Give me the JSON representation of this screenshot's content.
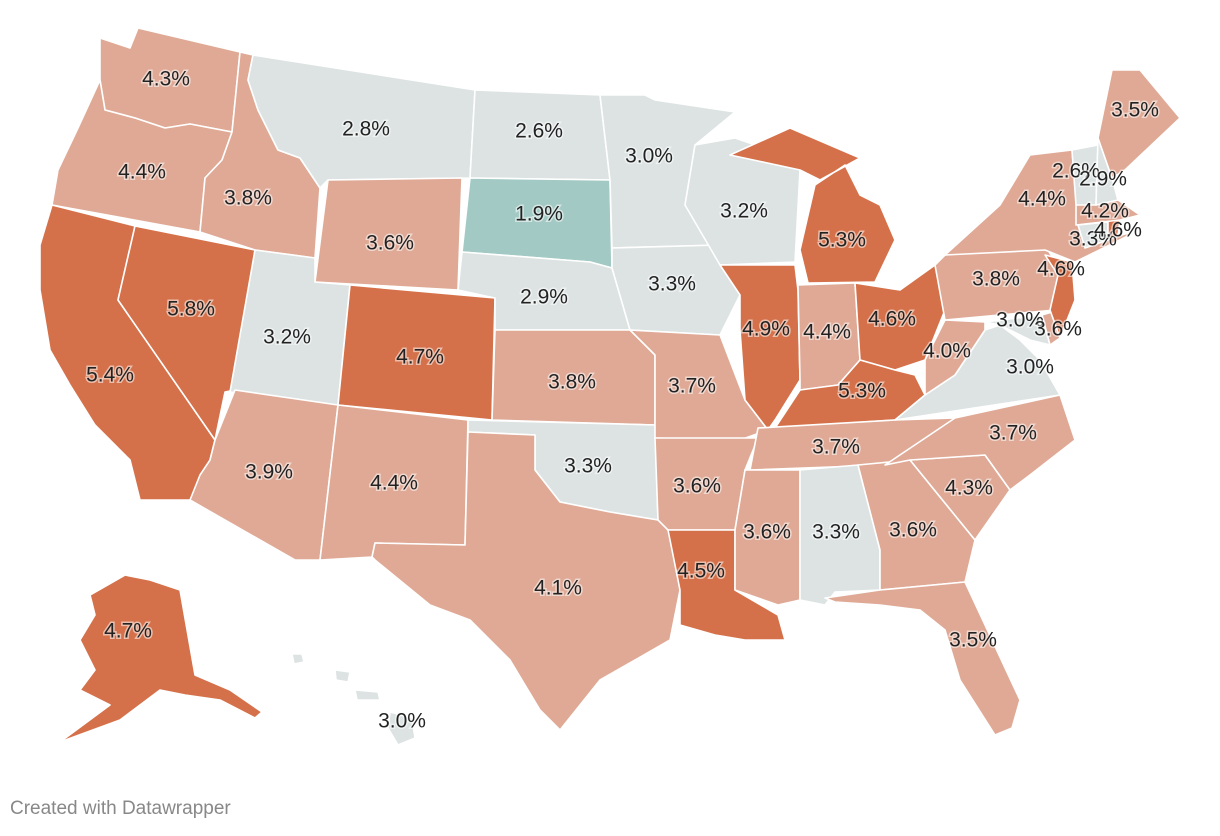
{
  "map": {
    "colors": {
      "high": "#d5714a",
      "mid": "#dfa995",
      "low": "#dce3e2",
      "lowest": "#a2c9c3"
    },
    "states": [
      {
        "code": "WA",
        "label": "4.3%",
        "cls": "mid"
      },
      {
        "code": "OR",
        "label": "4.4%",
        "cls": "mid"
      },
      {
        "code": "CA",
        "label": "5.4%",
        "cls": "high"
      },
      {
        "code": "NV",
        "label": "5.8%",
        "cls": "high"
      },
      {
        "code": "ID",
        "label": "3.8%",
        "cls": "mid"
      },
      {
        "code": "MT",
        "label": "2.8%",
        "cls": "low"
      },
      {
        "code": "WY",
        "label": "3.6%",
        "cls": "mid"
      },
      {
        "code": "UT",
        "label": "3.2%",
        "cls": "low"
      },
      {
        "code": "AZ",
        "label": "3.9%",
        "cls": "mid"
      },
      {
        "code": "CO",
        "label": "4.7%",
        "cls": "high"
      },
      {
        "code": "NM",
        "label": "4.4%",
        "cls": "mid"
      },
      {
        "code": "ND",
        "label": "2.6%",
        "cls": "low"
      },
      {
        "code": "SD",
        "label": "1.9%",
        "cls": "lowest"
      },
      {
        "code": "NE",
        "label": "2.9%",
        "cls": "low"
      },
      {
        "code": "KS",
        "label": "3.8%",
        "cls": "mid"
      },
      {
        "code": "OK",
        "label": "3.3%",
        "cls": "low"
      },
      {
        "code": "TX",
        "label": "4.1%",
        "cls": "mid"
      },
      {
        "code": "MN",
        "label": "3.0%",
        "cls": "low"
      },
      {
        "code": "IA",
        "label": "3.3%",
        "cls": "low"
      },
      {
        "code": "MO",
        "label": "3.7%",
        "cls": "mid"
      },
      {
        "code": "AR",
        "label": "3.6%",
        "cls": "mid"
      },
      {
        "code": "LA",
        "label": "4.5%",
        "cls": "high"
      },
      {
        "code": "WI",
        "label": "3.2%",
        "cls": "low"
      },
      {
        "code": "IL",
        "label": "4.9%",
        "cls": "high"
      },
      {
        "code": "MI",
        "label": "5.3%",
        "cls": "high"
      },
      {
        "code": "IN",
        "label": "4.4%",
        "cls": "mid"
      },
      {
        "code": "OH",
        "label": "4.6%",
        "cls": "high"
      },
      {
        "code": "KY",
        "label": "5.3%",
        "cls": "high"
      },
      {
        "code": "TN",
        "label": "3.7%",
        "cls": "mid"
      },
      {
        "code": "MS",
        "label": "3.6%",
        "cls": "mid"
      },
      {
        "code": "AL",
        "label": "3.3%",
        "cls": "low"
      },
      {
        "code": "GA",
        "label": "3.6%",
        "cls": "mid"
      },
      {
        "code": "FL",
        "label": "3.5%",
        "cls": "mid"
      },
      {
        "code": "SC",
        "label": "4.3%",
        "cls": "mid"
      },
      {
        "code": "NC",
        "label": "3.7%",
        "cls": "mid"
      },
      {
        "code": "VA",
        "label": "3.0%",
        "cls": "low"
      },
      {
        "code": "WV",
        "label": "4.0%",
        "cls": "mid"
      },
      {
        "code": "MD",
        "label": "3.0%",
        "cls": "low"
      },
      {
        "code": "DE",
        "label": "3.6%",
        "cls": "mid"
      },
      {
        "code": "PA",
        "label": "3.8%",
        "cls": "mid"
      },
      {
        "code": "NJ",
        "label": "4.6%",
        "cls": "high"
      },
      {
        "code": "NY",
        "label": "4.4%",
        "cls": "mid"
      },
      {
        "code": "CT",
        "label": "3.3%",
        "cls": "low"
      },
      {
        "code": "RI",
        "label": "4.6%",
        "cls": "high"
      },
      {
        "code": "MA",
        "label": "4.2%",
        "cls": "mid"
      },
      {
        "code": "VT",
        "label": "2.6%",
        "cls": "low"
      },
      {
        "code": "NH",
        "label": "2.9%",
        "cls": "low"
      },
      {
        "code": "ME",
        "label": "3.5%",
        "cls": "mid"
      },
      {
        "code": "AK",
        "label": "4.7%",
        "cls": "high"
      },
      {
        "code": "HI",
        "label": "3.0%",
        "cls": "low"
      }
    ]
  },
  "footer": {
    "credit": "Created with Datawrapper"
  }
}
